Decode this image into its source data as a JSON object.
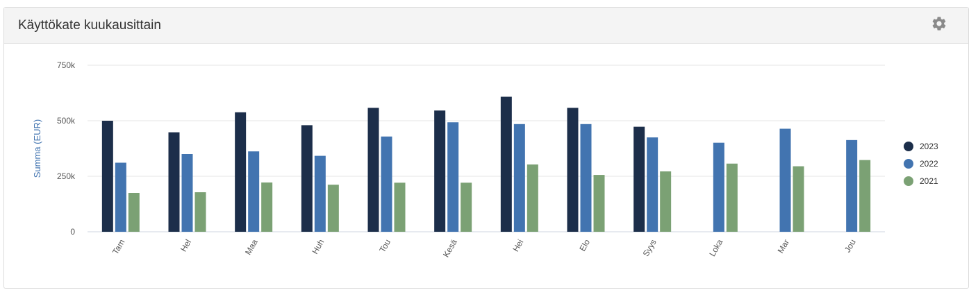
{
  "panel": {
    "title": "Käyttökate kuukausittain",
    "settings_icon": "gear-icon"
  },
  "colors": {
    "2023": "#1c2e4a",
    "2022": "#4274b0",
    "2021": "#7ba174",
    "grid": "#e6e6e6",
    "axis_text": "#555555",
    "ylabel": "#4274b0"
  },
  "chart_data": {
    "type": "bar",
    "title": "",
    "xlabel": "",
    "ylabel": "Summa (EUR)",
    "ylim": [
      0,
      750000
    ],
    "yticks": [
      0,
      250000,
      500000,
      750000
    ],
    "ytick_labels": [
      "0",
      "250k",
      "500k",
      "750k"
    ],
    "categories": [
      "Tam",
      "Hel",
      "Maa",
      "Huh",
      "Tou",
      "Kesä",
      "Hei",
      "Elo",
      "Syys",
      "Loka",
      "Mar",
      "Jou"
    ],
    "legend_position": "right",
    "series": [
      {
        "name": "2023",
        "values": [
          500000,
          448000,
          538000,
          480000,
          558000,
          546000,
          608000,
          558000,
          473000,
          null,
          null,
          null
        ]
      },
      {
        "name": "2022",
        "values": [
          311000,
          350000,
          362000,
          342000,
          429000,
          493000,
          485000,
          485000,
          425000,
          401000,
          464000,
          413000
        ]
      },
      {
        "name": "2021",
        "values": [
          175000,
          178000,
          222000,
          212000,
          221000,
          221000,
          303000,
          256000,
          272000,
          307000,
          295000,
          323000
        ]
      }
    ]
  }
}
